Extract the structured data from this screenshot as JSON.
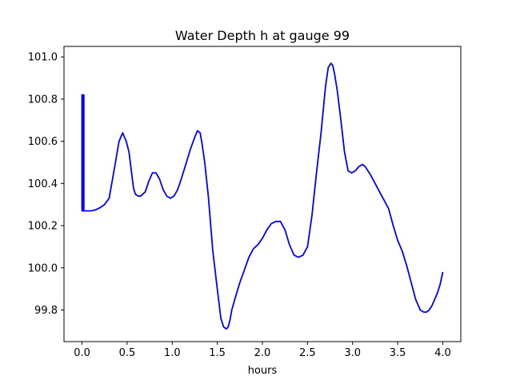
{
  "chart_data": {
    "type": "line",
    "title": "Water Depth h at gauge 99",
    "xlabel": "hours",
    "ylabel": "",
    "xlim": [
      -0.2,
      4.2
    ],
    "ylim": [
      99.65,
      101.05
    ],
    "x_ticks": [
      0.0,
      0.5,
      1.0,
      1.5,
      2.0,
      2.5,
      3.0,
      3.5,
      4.0
    ],
    "x_tick_labels": [
      "0.0",
      "0.5",
      "1.0",
      "1.5",
      "2.0",
      "2.5",
      "3.0",
      "3.5",
      "4.0"
    ],
    "y_ticks": [
      99.8,
      100.0,
      100.2,
      100.4,
      100.6,
      100.8,
      101.0
    ],
    "y_tick_labels": [
      "99.8",
      "100.0",
      "100.2",
      "100.4",
      "100.6",
      "100.8",
      "101.0"
    ],
    "grid": false,
    "series": [
      {
        "color": "#0000ff",
        "x": [
          0.0,
          0.0,
          0.0,
          0.005,
          0.005,
          0.01,
          0.01,
          0.015,
          0.015,
          0.02,
          0.02,
          0.05,
          0.1,
          0.15,
          0.2,
          0.25,
          0.3,
          0.33,
          0.37,
          0.41,
          0.45,
          0.47,
          0.49,
          0.52,
          0.55,
          0.57,
          0.59,
          0.62,
          0.65,
          0.7,
          0.74,
          0.78,
          0.82,
          0.86,
          0.9,
          0.94,
          0.98,
          1.02,
          1.06,
          1.1,
          1.15,
          1.2,
          1.25,
          1.28,
          1.31,
          1.33,
          1.36,
          1.4,
          1.45,
          1.5,
          1.54,
          1.57,
          1.6,
          1.62,
          1.64,
          1.66,
          1.7,
          1.75,
          1.8,
          1.85,
          1.9,
          1.95,
          2.0,
          2.05,
          2.1,
          2.15,
          2.2,
          2.25,
          2.3,
          2.35,
          2.4,
          2.45,
          2.5,
          2.55,
          2.6,
          2.65,
          2.7,
          2.73,
          2.76,
          2.78,
          2.8,
          2.83,
          2.87,
          2.91,
          2.95,
          2.99,
          3.03,
          3.07,
          3.11,
          3.14,
          3.17,
          3.2,
          3.25,
          3.3,
          3.35,
          3.4,
          3.45,
          3.5,
          3.55,
          3.6,
          3.65,
          3.7,
          3.75,
          3.79,
          3.82,
          3.85,
          3.88,
          3.91,
          3.94,
          3.97,
          4.0
        ],
        "y": [
          100.27,
          100.82,
          100.27,
          100.27,
          100.82,
          100.82,
          100.27,
          100.27,
          100.82,
          100.82,
          100.27,
          100.27,
          100.27,
          100.275,
          100.285,
          100.3,
          100.33,
          100.4,
          100.5,
          100.6,
          100.64,
          100.62,
          100.6,
          100.55,
          100.45,
          100.38,
          100.35,
          100.34,
          100.34,
          100.36,
          100.41,
          100.45,
          100.45,
          100.42,
          100.37,
          100.34,
          100.33,
          100.34,
          100.37,
          100.42,
          100.49,
          100.56,
          100.62,
          100.65,
          100.64,
          100.59,
          100.5,
          100.34,
          100.08,
          99.9,
          99.76,
          99.72,
          99.71,
          99.72,
          99.75,
          99.8,
          99.86,
          99.93,
          99.99,
          100.05,
          100.09,
          100.11,
          100.14,
          100.18,
          100.21,
          100.22,
          100.22,
          100.18,
          100.11,
          100.06,
          100.05,
          100.06,
          100.1,
          100.25,
          100.45,
          100.64,
          100.86,
          100.95,
          100.97,
          100.96,
          100.92,
          100.84,
          100.7,
          100.55,
          100.46,
          100.45,
          100.46,
          100.48,
          100.49,
          100.48,
          100.46,
          100.44,
          100.4,
          100.36,
          100.32,
          100.28,
          100.2,
          100.13,
          100.08,
          100.01,
          99.93,
          99.85,
          99.8,
          99.79,
          99.79,
          99.8,
          99.82,
          99.85,
          99.88,
          99.92,
          99.98
        ]
      }
    ]
  }
}
